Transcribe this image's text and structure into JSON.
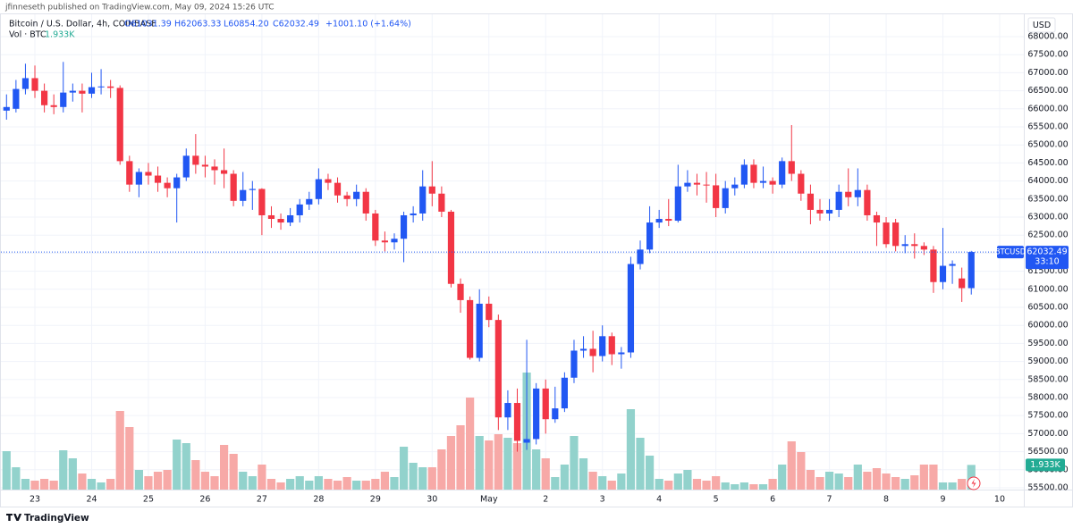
{
  "chart_data": {
    "type": "candlestick",
    "publisher": "jfinneseth published on TradingView.com, May 09, 2024 15:26 UTC",
    "title": "Bitcoin / U.S. Dollar, 4h, COINBASE",
    "ohlc_legend": [
      "O61031.39",
      "H62063.33",
      "L60854.20",
      "C62032.49",
      "+1001.10 (+1.64%)"
    ],
    "volume_legend": "Vol · BTC",
    "volume_label": "1.933K",
    "currency": "USD",
    "symbol": "BTCUSD",
    "last_price_label": "62032.49",
    "countdown": "33:10",
    "footer": "TradingView",
    "up_color": "#2157f3",
    "down_color": "#f23645",
    "volume_up_color": "#92d2cc",
    "volume_down_color": "#f7a9a7",
    "grid": true,
    "ylim": [
      55450,
      68520
    ],
    "yticks": [
      {
        "value": 55500,
        "label": "55500.00"
      },
      {
        "value": 56000,
        "label": "56000.00"
      },
      {
        "value": 56500,
        "label": "56500.00"
      },
      {
        "value": 57000,
        "label": "57000.00"
      },
      {
        "value": 57500,
        "label": "57500.00"
      },
      {
        "value": 58000,
        "label": "58000.00"
      },
      {
        "value": 58500,
        "label": "58500.00"
      },
      {
        "value": 59000,
        "label": "59000.00"
      },
      {
        "value": 59500,
        "label": "59500.00"
      },
      {
        "value": 60000,
        "label": "60000.00"
      },
      {
        "value": 60500,
        "label": "60500.00"
      },
      {
        "value": 61000,
        "label": "61000.00"
      },
      {
        "value": 61500,
        "label": "61500.00"
      },
      {
        "value": 62000,
        "label": "62000.00"
      },
      {
        "value": 62500,
        "label": "62500.00"
      },
      {
        "value": 63000,
        "label": "63000.00"
      },
      {
        "value": 63500,
        "label": "63500.00"
      },
      {
        "value": 64000,
        "label": "64000.00"
      },
      {
        "value": 64500,
        "label": "64500.00"
      },
      {
        "value": 65000,
        "label": "65000.00"
      },
      {
        "value": 65500,
        "label": "65500.00"
      },
      {
        "value": 66000,
        "label": "66000.00"
      },
      {
        "value": 66500,
        "label": "66500.00"
      },
      {
        "value": 67000,
        "label": "67000.00"
      },
      {
        "value": 67500,
        "label": "67500.00"
      },
      {
        "value": 68000,
        "label": "68000.00"
      }
    ],
    "categories": [
      null,
      null,
      null,
      "23",
      null,
      null,
      null,
      null,
      null,
      "24",
      null,
      null,
      null,
      null,
      null,
      "25",
      null,
      null,
      null,
      null,
      null,
      "26",
      null,
      null,
      null,
      null,
      null,
      "27",
      null,
      null,
      null,
      null,
      null,
      "28",
      null,
      null,
      null,
      null,
      null,
      "29",
      null,
      null,
      null,
      null,
      null,
      "30",
      null,
      null,
      null,
      null,
      null,
      "May",
      null,
      null,
      null,
      null,
      null,
      "2",
      null,
      null,
      null,
      null,
      null,
      "3",
      null,
      null,
      null,
      null,
      null,
      "4",
      null,
      null,
      null,
      null,
      null,
      "5",
      null,
      null,
      null,
      null,
      null,
      "6",
      null,
      null,
      null,
      null,
      null,
      "7",
      null,
      null,
      null,
      null,
      null,
      "8",
      null,
      null,
      null,
      null,
      null,
      "9",
      null,
      null,
      null,
      null,
      null,
      "10"
    ],
    "open": [
      65950,
      66000,
      66550,
      66850,
      66500,
      66100,
      66050,
      66450,
      66500,
      66420,
      66600,
      66620,
      66580,
      64550,
      63900,
      64250,
      64150,
      63950,
      63800,
      64100,
      64700,
      64450,
      64400,
      64300,
      64200,
      63450,
      63750,
      63780,
      63050,
      62950,
      62850,
      63050,
      63350,
      63500,
      64050,
      63950,
      63600,
      63500,
      63700,
      63100,
      62350,
      62300,
      62400,
      63050,
      63100,
      63850,
      63650,
      63150,
      61150,
      60700,
      59100,
      60600,
      60150,
      57450,
      57850,
      56750,
      56850,
      58250,
      57400,
      57700,
      58550,
      59300,
      59350,
      59150,
      59700,
      59200,
      59250,
      61700,
      62100,
      62850,
      62950,
      62900,
      63850,
      63950,
      63900,
      63880,
      63250,
      63800,
      63900,
      64450,
      63950,
      64000,
      63900,
      64550,
      64200,
      63650,
      63200,
      63100,
      63200,
      63700,
      63550,
      63750,
      63050,
      62850,
      62850,
      62200,
      62250,
      62200,
      62100,
      61200,
      61650,
      61300,
      61031.39,
      null,
      null,
      null
    ],
    "high": [
      66400,
      66800,
      67250,
      67200,
      66700,
      66400,
      67300,
      66700,
      66700,
      67000,
      67100,
      66800,
      66650,
      64700,
      64350,
      64500,
      64400,
      64100,
      64200,
      64900,
      65300,
      64700,
      64600,
      64900,
      64300,
      64250,
      64000,
      63800,
      63300,
      63100,
      63250,
      63500,
      63700,
      64350,
      64200,
      64100,
      63700,
      63900,
      63800,
      63200,
      62600,
      62550,
      63150,
      63300,
      64300,
      64550,
      63850,
      63200,
      61300,
      60800,
      61000,
      60800,
      60300,
      58200,
      58250,
      59600,
      58400,
      58500,
      58300,
      58700,
      59600,
      59700,
      59850,
      60000,
      59800,
      59400,
      61900,
      62350,
      63300,
      63200,
      63500,
      64450,
      64300,
      64200,
      64250,
      64200,
      64000,
      64100,
      64600,
      64600,
      64400,
      64100,
      64650,
      65550,
      64300,
      63900,
      63500,
      63500,
      63900,
      64350,
      64350,
      63900,
      63150,
      63000,
      62950,
      62500,
      62550,
      62300,
      62200,
      62700,
      61800,
      61600,
      62063.33,
      null,
      null,
      null
    ],
    "low": [
      65700,
      65900,
      66400,
      66300,
      65900,
      65850,
      65900,
      66200,
      65900,
      66300,
      66400,
      66300,
      64450,
      63700,
      63550,
      63900,
      63700,
      63550,
      62850,
      64000,
      64200,
      64100,
      63900,
      63800,
      63300,
      63300,
      63200,
      62500,
      62700,
      62650,
      62750,
      62850,
      63200,
      63350,
      63750,
      63400,
      63300,
      63300,
      62900,
      62200,
      62050,
      62100,
      61750,
      62850,
      62900,
      63300,
      63000,
      61050,
      60350,
      59050,
      59000,
      59950,
      57100,
      57100,
      56500,
      56550,
      56700,
      57000,
      57300,
      57600,
      58400,
      59100,
      58700,
      59000,
      58900,
      58800,
      59100,
      61550,
      62000,
      62700,
      62750,
      62850,
      63700,
      63600,
      63400,
      63000,
      63100,
      63600,
      63800,
      63800,
      63800,
      63650,
      63800,
      64000,
      63450,
      62800,
      62900,
      62900,
      63000,
      63300,
      63300,
      62900,
      62200,
      62150,
      62050,
      62000,
      61850,
      61950,
      60900,
      61000,
      61150,
      60650,
      60854.2,
      null,
      null,
      null
    ],
    "close": [
      66050,
      66550,
      66850,
      66500,
      66100,
      66050,
      66450,
      66500,
      66420,
      66600,
      66620,
      66580,
      64550,
      63900,
      64250,
      64150,
      63950,
      63800,
      64100,
      64700,
      64450,
      64400,
      64300,
      64200,
      63450,
      63750,
      63780,
      63050,
      62950,
      62850,
      63050,
      63350,
      63500,
      64050,
      63950,
      63600,
      63500,
      63700,
      63100,
      62350,
      62300,
      62400,
      63050,
      63100,
      63850,
      63650,
      63150,
      61150,
      60700,
      59100,
      60600,
      60150,
      57450,
      57850,
      56800,
      56850,
      58250,
      57400,
      57700,
      58550,
      59300,
      59350,
      59150,
      59700,
      59200,
      59250,
      61700,
      62100,
      62850,
      62950,
      62900,
      63850,
      63950,
      63900,
      63880,
      63250,
      63800,
      63900,
      64450,
      63950,
      64000,
      63900,
      64550,
      64200,
      63650,
      63200,
      63100,
      63200,
      63700,
      63550,
      63750,
      63050,
      62850,
      62250,
      62200,
      62250,
      62200,
      62100,
      61200,
      61650,
      61700,
      61031.39,
      62032.49,
      null,
      null,
      null
    ],
    "volume": [
      3010,
      1750,
      840,
      700,
      840,
      700,
      3080,
      2450,
      1260,
      840,
      560,
      840,
      6160,
      4900,
      1540,
      1050,
      1400,
      1540,
      3920,
      3640,
      2310,
      1400,
      1050,
      3500,
      2800,
      1400,
      1050,
      1960,
      840,
      560,
      840,
      1050,
      700,
      1050,
      840,
      700,
      980,
      700,
      700,
      840,
      1400,
      980,
      3360,
      2100,
      1750,
      1750,
      3150,
      4200,
      5040,
      7210,
      4200,
      3850,
      4340,
      4060,
      3640,
      9170,
      3150,
      2450,
      980,
      1960,
      4200,
      2450,
      1400,
      1050,
      700,
      1260,
      6300,
      4060,
      2660,
      840,
      700,
      1260,
      1540,
      840,
      700,
      1050,
      560,
      420,
      560,
      420,
      420,
      840,
      1960,
      3780,
      2940,
      1540,
      980,
      1400,
      1260,
      980,
      1960,
      1400,
      1680,
      1260,
      980,
      840,
      1120,
      1960,
      1960,
      560,
      560,
      840,
      1933,
      null,
      null,
      null
    ]
  }
}
